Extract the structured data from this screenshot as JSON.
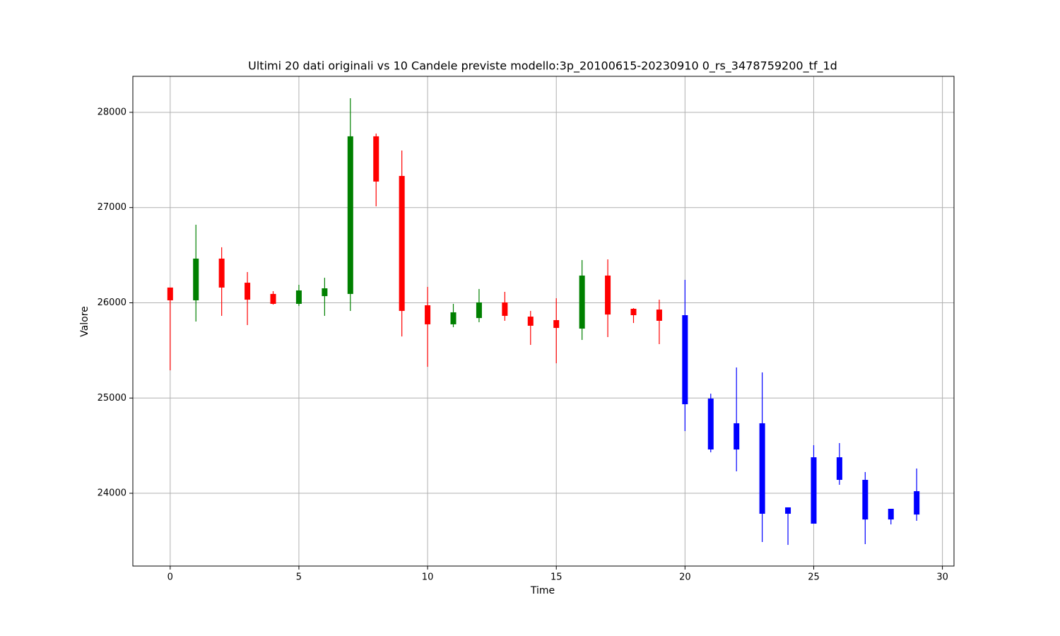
{
  "chart_data": {
    "type": "candlestick",
    "title": "Ultimi 20 dati originali vs 10 Candele previste modello:3p_20100615-20230910 0_rs_3478759200_tf_1d",
    "x_label": "Time",
    "y_label": "Valore",
    "x": [
      0,
      1,
      2,
      3,
      4,
      5,
      6,
      7,
      8,
      9,
      10,
      11,
      12,
      13,
      14,
      15,
      16,
      17,
      18,
      19,
      20,
      21,
      22,
      23,
      24,
      25,
      26,
      27,
      28,
      29
    ],
    "open": [
      26160,
      26026,
      26464,
      26211,
      26093,
      25989,
      26070,
      26093,
      27748,
      27332,
      25974,
      25774,
      25840,
      26004,
      25855,
      25818,
      25729,
      26286,
      25937,
      25929,
      25870,
      24994,
      24460,
      24735,
      23785,
      23681,
      24378,
      24141,
      23725,
      23777
    ],
    "high": [
      26160,
      26820,
      26583,
      26323,
      26122,
      26189,
      26263,
      28148,
      27777,
      27599,
      26167,
      25989,
      26145,
      26115,
      25915,
      26048,
      26449,
      26456,
      25944,
      26033,
      26241,
      25046,
      25321,
      25269,
      23852,
      24505,
      24527,
      24223,
      23837,
      24260
    ],
    "low": [
      25291,
      25803,
      25863,
      25766,
      25981,
      25967,
      25863,
      25915,
      27013,
      25647,
      25328,
      25744,
      25796,
      25811,
      25558,
      25365,
      25610,
      25640,
      25788,
      25566,
      24653,
      24430,
      24230,
      23488,
      23458,
      23681,
      24089,
      23466,
      23673,
      23711
    ],
    "close": [
      26026,
      26464,
      26160,
      26033,
      25989,
      26130,
      26152,
      27748,
      27273,
      25915,
      25774,
      25900,
      26004,
      25863,
      25759,
      25736,
      26286,
      25877,
      25870,
      25811,
      24935,
      24460,
      24735,
      23785,
      23852,
      24378,
      24141,
      23725,
      23837,
      24022
    ],
    "colors": [
      "red",
      "green",
      "red",
      "red",
      "red",
      "green",
      "green",
      "green",
      "red",
      "red",
      "red",
      "green",
      "green",
      "red",
      "red",
      "red",
      "green",
      "red",
      "red",
      "red",
      "blue",
      "blue",
      "blue",
      "blue",
      "blue",
      "blue",
      "blue",
      "blue",
      "blue",
      "blue"
    ],
    "xlim": [
      -1.45,
      30.45
    ],
    "ylim": [
      23236,
      28378
    ],
    "xticks": [
      0,
      5,
      10,
      15,
      20,
      25,
      30
    ],
    "yticks": [
      24000,
      25000,
      26000,
      27000,
      28000
    ],
    "grid": true
  }
}
